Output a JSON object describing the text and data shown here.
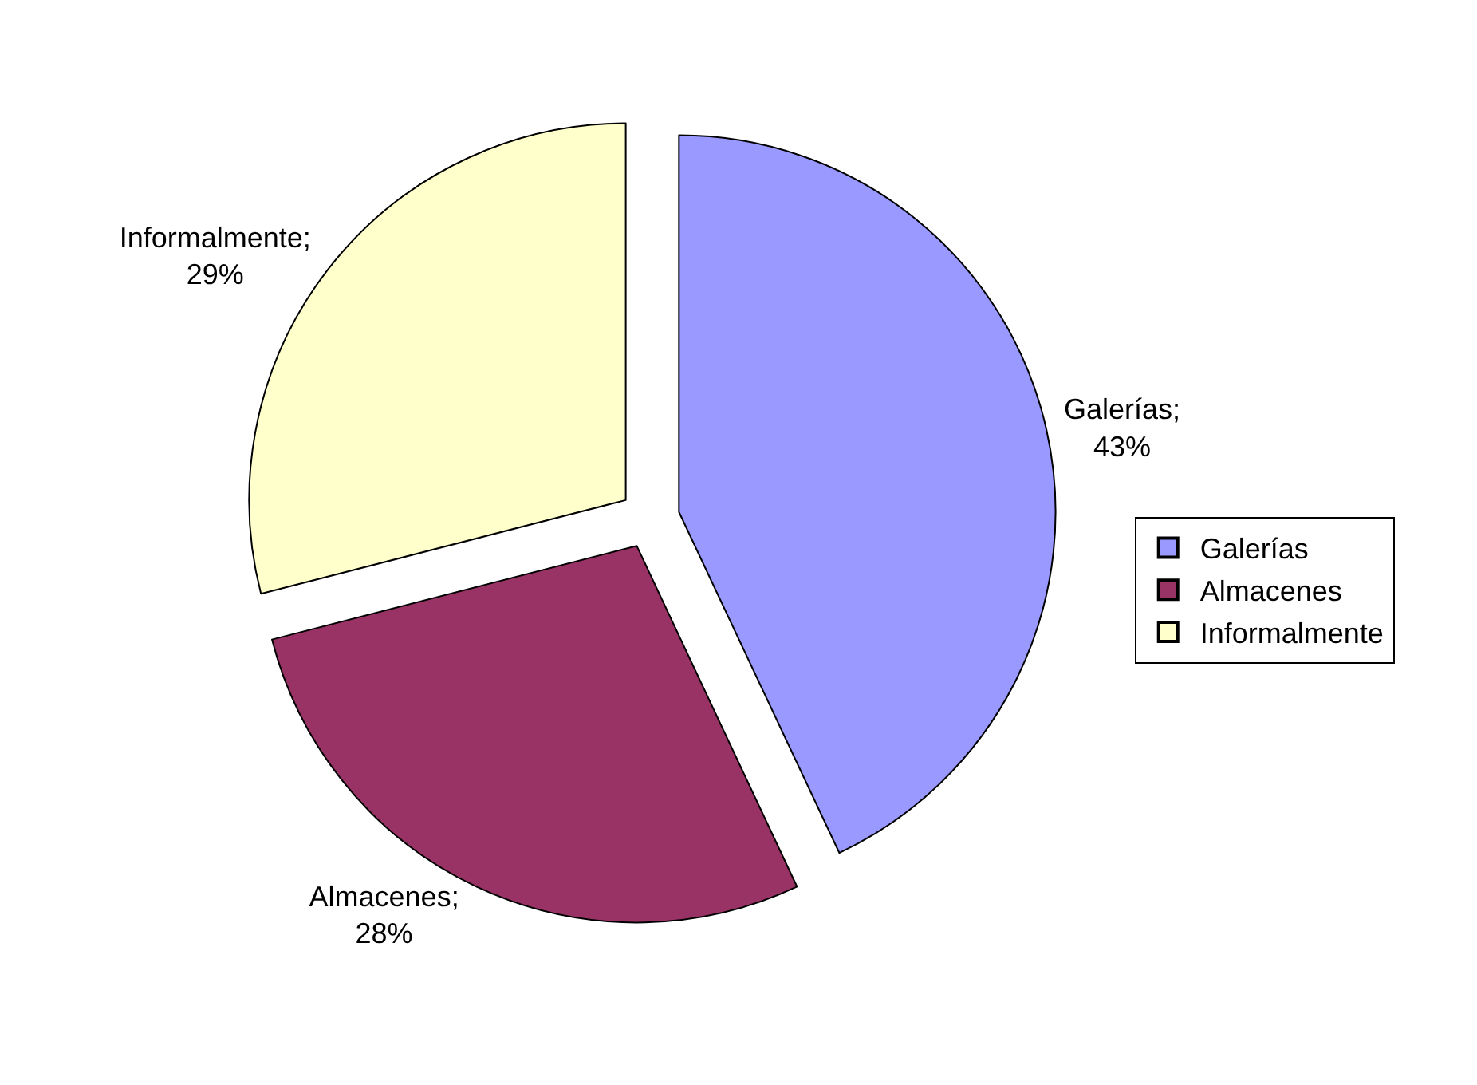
{
  "chart_data": {
    "type": "pie",
    "categories": [
      "Galerías",
      "Almacenes",
      "Informalmente"
    ],
    "values": [
      43,
      28,
      29
    ],
    "colors": [
      "#9999ff",
      "#993366",
      "#ffffcc"
    ],
    "value_labels": [
      "Galerías; 43%",
      "Almacenes; 28%",
      "Informalmente; 29%"
    ],
    "legend": "right"
  }
}
